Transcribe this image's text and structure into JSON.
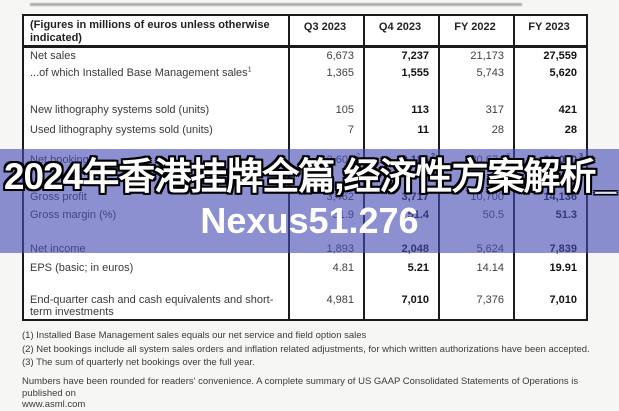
{
  "table": {
    "header": {
      "label": "(Figures in millions of euros unless otherwise indicated)",
      "columns": [
        "Q3 2023",
        "Q4 2023",
        "FY 2022",
        "FY 2023"
      ]
    },
    "rows": [
      {
        "label": "Net sales",
        "values": [
          "6,673",
          "7,237",
          "21,173",
          "27,559"
        ]
      },
      {
        "label": "...of which Installed Base Management sales",
        "label_sup": "1",
        "values": [
          "1,365",
          "1,555",
          "5,743",
          "5,620"
        ]
      },
      {
        "label": "New lithography systems sold (units)",
        "values": [
          "105",
          "113",
          "317",
          "421"
        ]
      },
      {
        "label": "Used lithography systems sold (units)",
        "values": [
          "7",
          "11",
          "28",
          "28"
        ]
      },
      {
        "label": "Net bookings",
        "values": [
          "2,602",
          "9,186",
          "30,674",
          "20,040"
        ],
        "sups": [
          "2",
          "2",
          "3",
          "3"
        ]
      },
      {
        "label": "Gross profit",
        "values": [
          "3,462",
          "3,717",
          "10,700",
          "14,136"
        ]
      },
      {
        "label": "Gross margin (%)",
        "values": [
          "51.9",
          "51.4",
          "50.5",
          "51.3"
        ]
      },
      {
        "label": "Net income",
        "values": [
          "1,893",
          "2,048",
          "5,624",
          "7,839"
        ]
      },
      {
        "label": "EPS (basic; in euros)",
        "values": [
          "4.81",
          "5.21",
          "14.14",
          "19.91"
        ]
      },
      {
        "label": "End-quarter cash and cash equivalents and short-term investments",
        "values": [
          "4,981",
          "7,010",
          "7,376",
          "7,010"
        ]
      }
    ]
  },
  "footnotes": [
    "(1) Installed Base Management sales equals our net service and field option sales",
    "(2) Net bookings include all system sales orders and inflation related adjustments, for which written authorizations have been accepted.",
    "(3) The sum of quarterly net bookings over the full year."
  ],
  "note": {
    "line1": "Numbers have been rounded for readers' convenience. A complete summary of US GAAP Consolidated Statements of Operations is published on",
    "line2": "www.asml.com"
  },
  "overlay": {
    "line1": "2024年香港挂牌全篇,经济性方案解析_",
    "line2": "Nexus51.276",
    "tint_hex": "#464cb4",
    "tint_opacity": "0.62",
    "style_bg": "background-color: rgba(70,76,180,0.62);"
  }
}
